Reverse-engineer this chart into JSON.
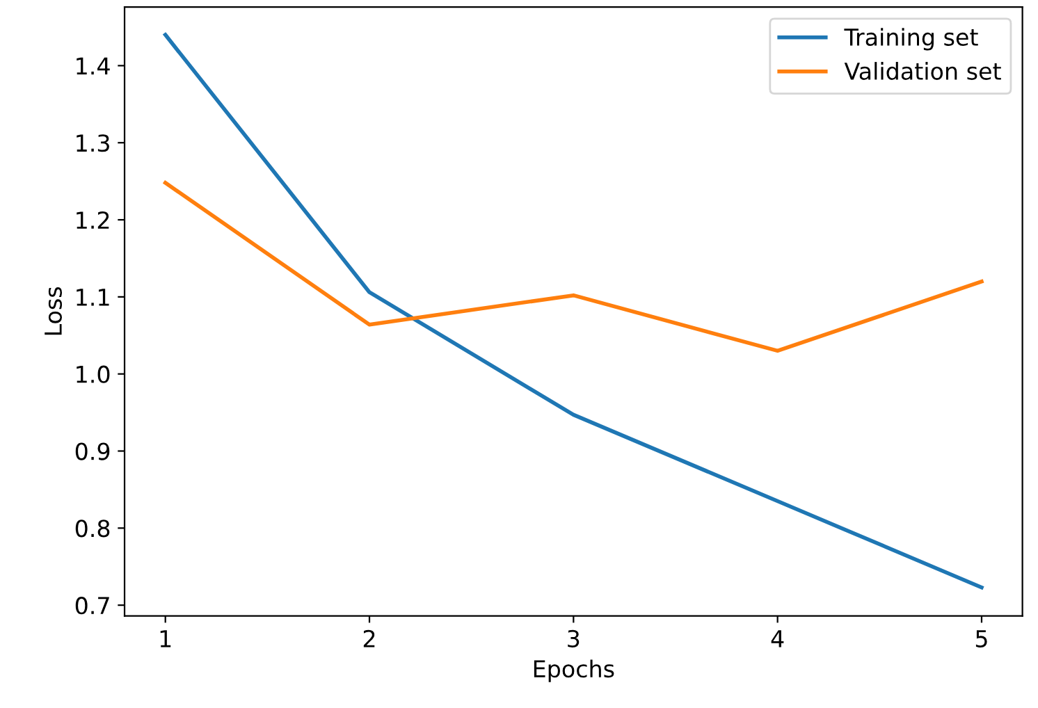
{
  "chart_data": {
    "type": "line",
    "xlabel": "Epochs",
    "ylabel": "Loss",
    "x": [
      1,
      2,
      3,
      4,
      5
    ],
    "series": [
      {
        "name": "Training set",
        "color": "#1f77b4",
        "values": [
          1.44,
          1.106,
          0.947,
          0.835,
          0.723
        ]
      },
      {
        "name": "Validation set",
        "color": "#ff7f0e",
        "values": [
          1.248,
          1.064,
          1.102,
          1.03,
          1.12
        ]
      }
    ],
    "xlim": [
      0.8,
      5.2
    ],
    "ylim": [
      0.686,
      1.476
    ],
    "xticks": [
      1,
      2,
      3,
      4,
      5
    ],
    "yticks": [
      0.7,
      0.8,
      0.9,
      {
        "value": 1.0,
        "label": "1.0"
      },
      1.1,
      1.2,
      1.3,
      1.4
    ],
    "legend": "top right",
    "grid": false,
    "marker": "none",
    "line_style": "solid"
  }
}
